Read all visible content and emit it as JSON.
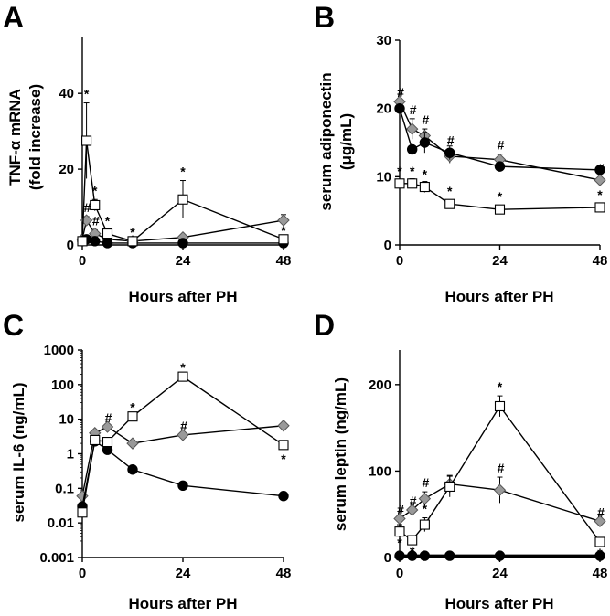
{
  "panels": {
    "A": {
      "letter": "A",
      "ylabel_line1": "TNF-α mRNA",
      "ylabel_line2": "(fold increase)",
      "xlabel": "Hours after PH"
    },
    "B": {
      "letter": "B",
      "ylabel_line1": "serum adiponectin",
      "ylabel_line2": "(μg/mL)",
      "xlabel": "Hours after PH"
    },
    "C": {
      "letter": "C",
      "ylabel_line1": "serum IL-6 (ng/mL)",
      "xlabel": "Hours after PH"
    },
    "D": {
      "letter": "D",
      "ylabel_line1": "serum leptin (ng/mL)",
      "xlabel": "Hours after PH"
    }
  },
  "colors": {
    "black_series": "#000000",
    "white_series_fill": "#ffffff",
    "gray_series_fill": "#999999"
  },
  "chart_data": [
    {
      "panel": "A",
      "type": "line",
      "xlim": [
        0,
        48
      ],
      "ylim": [
        0,
        55
      ],
      "xticks": [
        0,
        24,
        48
      ],
      "yticks": [
        0,
        20,
        40
      ],
      "series": [
        {
          "marker": "circle-black",
          "x": [
            0,
            1,
            3,
            6,
            12,
            24,
            48
          ],
          "y": [
            1,
            1.5,
            1,
            0.5,
            0.5,
            0.5,
            0.5
          ],
          "err": [
            0,
            0,
            0,
            0,
            0,
            0,
            0
          ],
          "sig": [
            "",
            "",
            "",
            "",
            "",
            "",
            ""
          ]
        },
        {
          "marker": "square-white",
          "x": [
            0,
            1,
            3,
            6,
            12,
            24,
            48
          ],
          "y": [
            1,
            27.5,
            10.5,
            3,
            1,
            12,
            1.5
          ],
          "err": [
            0,
            10,
            1.5,
            1,
            0,
            5,
            0
          ],
          "sig": [
            "",
            "*",
            "*",
            "*",
            "*",
            "*",
            "*"
          ]
        },
        {
          "marker": "diamond-gray",
          "x": [
            0,
            1,
            3,
            6,
            12,
            24,
            48
          ],
          "y": [
            1.5,
            6.5,
            3,
            1.5,
            1,
            2,
            6.5
          ],
          "err": [
            0,
            1,
            1,
            0,
            0,
            0,
            1.5
          ],
          "sig": [
            "",
            "#",
            "#",
            "",
            "",
            "",
            ""
          ]
        }
      ]
    },
    {
      "panel": "B",
      "type": "line",
      "xlim": [
        0,
        48
      ],
      "ylim": [
        0,
        30
      ],
      "xticks": [
        0,
        24,
        48
      ],
      "yticks": [
        0,
        10,
        20,
        30
      ],
      "series": [
        {
          "marker": "circle-black",
          "x": [
            0,
            3,
            6,
            12,
            24,
            48
          ],
          "y": [
            20,
            14,
            15,
            13.5,
            11.5,
            11
          ],
          "err": [
            0,
            0,
            1.5,
            1,
            0.5,
            0
          ],
          "sig": [
            "",
            "",
            "",
            "",
            "",
            ""
          ]
        },
        {
          "marker": "square-white",
          "x": [
            0,
            3,
            6,
            12,
            24,
            48
          ],
          "y": [
            9,
            9,
            8.5,
            6,
            5.2,
            5.5
          ],
          "err": [
            0,
            0.7,
            0.8,
            0.5,
            0.3,
            0.3
          ],
          "sig": [
            "*",
            "*",
            "*",
            "*",
            "*",
            "*"
          ]
        },
        {
          "marker": "diamond-gray",
          "x": [
            0,
            3,
            6,
            12,
            24,
            48
          ],
          "y": [
            21,
            17,
            16,
            13,
            12.5,
            9.5
          ],
          "err": [
            0,
            1.5,
            1,
            1,
            0.8,
            0.4
          ],
          "sig": [
            "#",
            "#",
            "#",
            "#",
            "#",
            "#"
          ]
        }
      ]
    },
    {
      "panel": "C",
      "type": "line",
      "yscale": "log",
      "xlim": [
        0,
        48
      ],
      "ylim": [
        0.001,
        1000
      ],
      "xticks": [
        0,
        24,
        48
      ],
      "yticks": [
        0.001,
        0.01,
        0.1,
        1,
        10,
        100,
        1000
      ],
      "ytick_labels": [
        "0.001",
        "0.01",
        "0.1",
        "1",
        "10",
        "100",
        "1000"
      ],
      "series": [
        {
          "marker": "circle-black",
          "x": [
            0,
            3,
            6,
            12,
            24,
            48
          ],
          "y": [
            0.03,
            2.3,
            1.3,
            0.35,
            0.12,
            0.06
          ],
          "sig": [
            "",
            "",
            "",
            "",
            "",
            ""
          ]
        },
        {
          "marker": "square-white",
          "x": [
            0,
            3,
            6,
            12,
            24,
            48
          ],
          "y": [
            0.02,
            2.5,
            2.2,
            12,
            170,
            1.8
          ],
          "sig": [
            "",
            "",
            "",
            "*",
            "*",
            "*"
          ]
        },
        {
          "marker": "diamond-gray",
          "x": [
            0,
            3,
            6,
            12,
            24,
            48
          ],
          "y": [
            0.06,
            4,
            6,
            2,
            3.5,
            6.5
          ],
          "sig": [
            "",
            "",
            "#",
            "",
            "#",
            ""
          ]
        }
      ]
    },
    {
      "panel": "D",
      "type": "line",
      "xlim": [
        0,
        48
      ],
      "ylim": [
        0,
        240
      ],
      "xticks": [
        0,
        24,
        48
      ],
      "yticks": [
        0,
        100,
        200
      ],
      "series": [
        {
          "marker": "circle-black",
          "x": [
            0,
            3,
            6,
            12,
            24,
            48
          ],
          "y": [
            2,
            2,
            2,
            2,
            2,
            2
          ],
          "err": [
            0,
            0,
            0,
            0,
            0,
            0
          ],
          "sig": [
            "",
            "",
            "",
            "",
            "",
            ""
          ]
        },
        {
          "marker": "square-white",
          "x": [
            0,
            3,
            6,
            12,
            24,
            48
          ],
          "y": [
            30,
            20,
            38,
            82,
            175,
            18
          ],
          "err": [
            8,
            5,
            8,
            12,
            12,
            3
          ],
          "sig": [
            "*",
            "*",
            "*",
            "",
            "*",
            "*"
          ]
        },
        {
          "marker": "diamond-gray",
          "x": [
            0,
            3,
            6,
            12,
            24,
            48
          ],
          "y": [
            45,
            55,
            68,
            85,
            78,
            42
          ],
          "err": [
            0,
            0,
            8,
            10,
            15,
            0
          ],
          "sig": [
            "#",
            "#",
            "#",
            "",
            "#",
            "#"
          ]
        }
      ]
    }
  ]
}
